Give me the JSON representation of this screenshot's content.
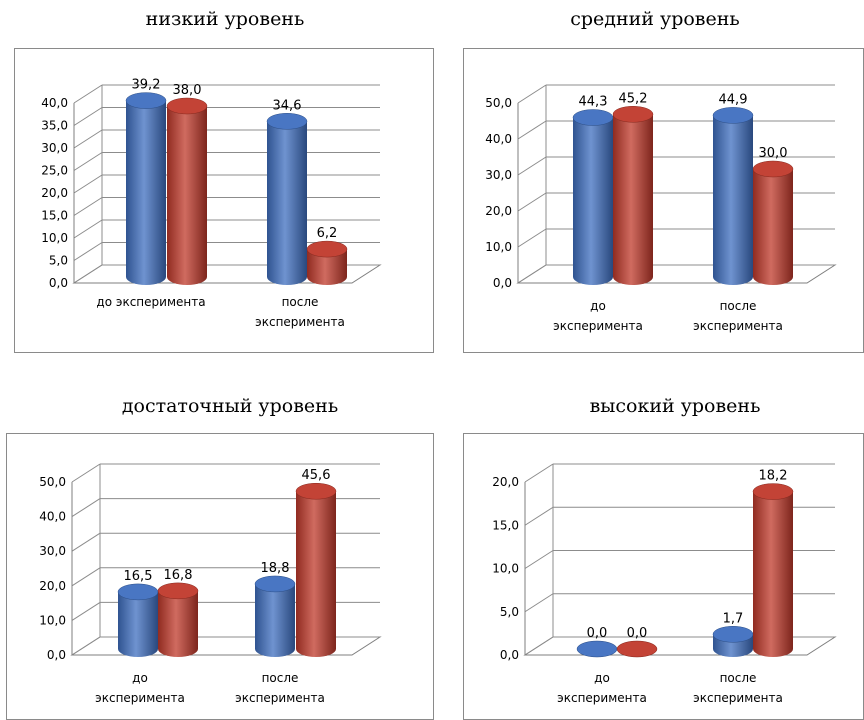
{
  "chart_data": [
    {
      "type": "bar",
      "title": "низкий уровень",
      "categories": [
        [
          "до эксперимента"
        ],
        [
          "после",
          "эксперимента"
        ]
      ],
      "series": [
        {
          "values": [
            39.2,
            34.6
          ],
          "labels": [
            "39,2",
            "34,6"
          ],
          "color": "#3f6fc0"
        },
        {
          "values": [
            38.0,
            6.2
          ],
          "labels": [
            "38,0",
            "6,2"
          ],
          "color": "#c0392b"
        }
      ],
      "ylim": [
        0,
        40
      ],
      "yticks": [
        "0,0",
        "5,0",
        "10,0",
        "15,0",
        "20,0",
        "25,0",
        "30,0",
        "35,0",
        "40,0"
      ],
      "grid": true
    },
    {
      "type": "bar",
      "title": "средний уровень",
      "categories": [
        [
          "до",
          "эксперимента"
        ],
        [
          "после",
          "эксперимента"
        ]
      ],
      "series": [
        {
          "values": [
            44.3,
            44.9
          ],
          "labels": [
            "44,3",
            "44,9"
          ],
          "color": "#3f6fc0"
        },
        {
          "values": [
            45.2,
            30.0
          ],
          "labels": [
            "45,2",
            "30,0"
          ],
          "color": "#c0392b"
        }
      ],
      "ylim": [
        0,
        50
      ],
      "yticks": [
        "0,0",
        "10,0",
        "20,0",
        "30,0",
        "40,0",
        "50,0"
      ],
      "grid": true
    },
    {
      "type": "bar",
      "title": "достаточный уровень",
      "categories": [
        [
          "до",
          "эксперимента"
        ],
        [
          "после",
          "эксперимента"
        ]
      ],
      "series": [
        {
          "values": [
            16.5,
            18.8
          ],
          "labels": [
            "16,5",
            "18,8"
          ],
          "color": "#3f6fc0"
        },
        {
          "values": [
            16.8,
            45.6
          ],
          "labels": [
            "16,8",
            "45,6"
          ],
          "color": "#c0392b"
        }
      ],
      "ylim": [
        0,
        50
      ],
      "yticks": [
        "0,0",
        "10,0",
        "20,0",
        "30,0",
        "40,0",
        "50,0"
      ],
      "grid": true
    },
    {
      "type": "bar",
      "title": "высокий уровень",
      "categories": [
        [
          "до",
          "эксперимента"
        ],
        [
          "после",
          "эксперимента"
        ]
      ],
      "series": [
        {
          "values": [
            0.0,
            1.7
          ],
          "labels": [
            "0,0",
            "1,7"
          ],
          "color": "#3f6fc0"
        },
        {
          "values": [
            0.0,
            18.2
          ],
          "labels": [
            "0,0",
            "18,2"
          ],
          "color": "#c0392b"
        }
      ],
      "ylim": [
        0,
        20
      ],
      "yticks": [
        "0,0",
        "5,0",
        "10,0",
        "15,0",
        "20,0"
      ],
      "grid": true
    }
  ]
}
